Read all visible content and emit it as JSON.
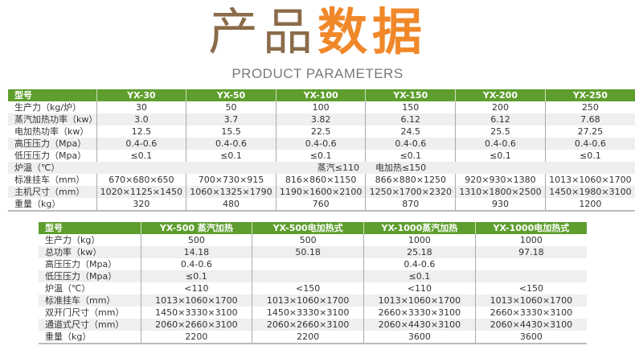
{
  "header": {
    "title_part1": "产品",
    "title_part2": "数据",
    "subtitle": "PRODUCT PARAMETERS"
  },
  "colors": {
    "title_brown": "#8b6b4a",
    "title_orange": "#f0882a",
    "header_green": "#5e9e2e",
    "row_alt": "#efefef"
  },
  "table1": {
    "headers": [
      "型号",
      "YX-30",
      "YX-50",
      "YX-100",
      "YX-150",
      "YX-200",
      "YX-250"
    ],
    "rows": [
      [
        "生产力（kg/炉）",
        "30",
        "50",
        "100",
        "150",
        "200",
        "250"
      ],
      [
        "蒸汽加热功率（kw）",
        "3.0",
        "3.7",
        "3.82",
        "6.12",
        "6.12",
        "7.68"
      ],
      [
        "电加热功率（kw）",
        "12.5",
        "15.5",
        "22.5",
        "24.5",
        "25.5",
        "27.25"
      ],
      [
        "高压压力（Mpa）",
        "0.4-0.6",
        "0.4-0.6",
        "0.4-0.6",
        "0.4-0.6",
        "0.4-0.6",
        "0.4-0.6"
      ],
      [
        "低压压力（Mpa）",
        "≤0.1",
        "≤0.1",
        "≤0.1",
        "≤0.1",
        "≤0.1",
        "≤0.1"
      ],
      [
        "炉温（℃）",
        "",
        "",
        "蒸汽≤110",
        "电加热≤150",
        "",
        ""
      ],
      [
        "标准挂车（mm）",
        "670×680×650",
        "700×730×915",
        "816×860×1150",
        "866×880×1250",
        "920×930×1380",
        "1013×1060×1700"
      ],
      [
        "主机尺寸（mm）",
        "1020×1125×1450",
        "1060×1325×1790",
        "1190×1600×2100",
        "1250×1700×2320",
        "1310×1800×2500",
        "1450×1980×3100"
      ],
      [
        "重量（kg）",
        "320",
        "480",
        "760",
        "870",
        "930",
        "1200"
      ]
    ]
  },
  "table2": {
    "headers": [
      "型号",
      "YX-500 蒸汽加热",
      "YX-500电加热式",
      "YX-1000蒸汽加热",
      "YX-1000电加热式"
    ],
    "rows": [
      [
        "生产力（kg）",
        "500",
        "500",
        "1000",
        "1000"
      ],
      [
        "总功率（kw）",
        "14.18",
        "50.18",
        "25.18",
        "97.18"
      ],
      [
        "高压压力（Mpa）",
        "0.4-0.6",
        "",
        "0.4-0.6",
        ""
      ],
      [
        "低压压力（Mpa）",
        "≤0.1",
        "",
        "≤0.1",
        ""
      ],
      [
        "炉温（℃）",
        "<110",
        "<150",
        "<110",
        "<150"
      ],
      [
        "标准挂车（mm）",
        "1013×1060×1700",
        "1013×1060×1700",
        "1013×1060×1700",
        "1013×1060×1700"
      ],
      [
        "双开门尺寸（mm）",
        "1450×3330×3100",
        "1450×3330×3100",
        "2660×3330×3100",
        "2660×3330×3100"
      ],
      [
        "通道式尺寸（mm）",
        "2060×2660×3100",
        "2060×2660×3100",
        "2060×4430×3100",
        "2060×4430×3100"
      ],
      [
        "重量（kg）",
        "2200",
        "2200",
        "3600",
        "3600"
      ]
    ]
  }
}
